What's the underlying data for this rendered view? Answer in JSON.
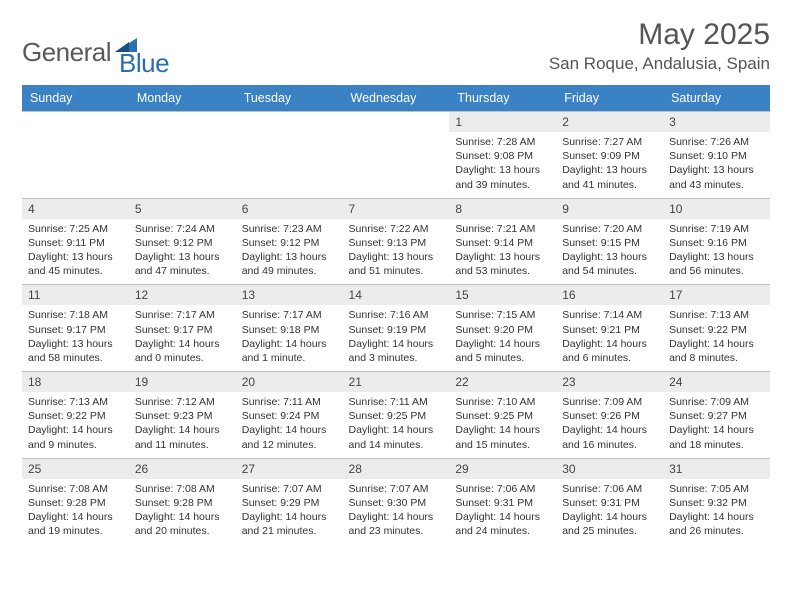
{
  "brand": {
    "name1": "General",
    "name2": "Blue"
  },
  "title": "May 2025",
  "location": "San Roque, Andalusia, Spain",
  "colors": {
    "header_bg": "#3b82c4",
    "header_fg": "#ffffff",
    "daynum_bg": "#ececec",
    "border": "#bfbfbf",
    "text": "#333333",
    "title": "#555555",
    "brand_gray": "#5a5a5a",
    "brand_blue": "#2b6fb0"
  },
  "weekdays": [
    "Sunday",
    "Monday",
    "Tuesday",
    "Wednesday",
    "Thursday",
    "Friday",
    "Saturday"
  ],
  "weeks": [
    [
      null,
      null,
      null,
      null,
      {
        "n": "1",
        "sr": "Sunrise: 7:28 AM",
        "ss": "Sunset: 9:08 PM",
        "dl": "Daylight: 13 hours and 39 minutes."
      },
      {
        "n": "2",
        "sr": "Sunrise: 7:27 AM",
        "ss": "Sunset: 9:09 PM",
        "dl": "Daylight: 13 hours and 41 minutes."
      },
      {
        "n": "3",
        "sr": "Sunrise: 7:26 AM",
        "ss": "Sunset: 9:10 PM",
        "dl": "Daylight: 13 hours and 43 minutes."
      }
    ],
    [
      {
        "n": "4",
        "sr": "Sunrise: 7:25 AM",
        "ss": "Sunset: 9:11 PM",
        "dl": "Daylight: 13 hours and 45 minutes."
      },
      {
        "n": "5",
        "sr": "Sunrise: 7:24 AM",
        "ss": "Sunset: 9:12 PM",
        "dl": "Daylight: 13 hours and 47 minutes."
      },
      {
        "n": "6",
        "sr": "Sunrise: 7:23 AM",
        "ss": "Sunset: 9:12 PM",
        "dl": "Daylight: 13 hours and 49 minutes."
      },
      {
        "n": "7",
        "sr": "Sunrise: 7:22 AM",
        "ss": "Sunset: 9:13 PM",
        "dl": "Daylight: 13 hours and 51 minutes."
      },
      {
        "n": "8",
        "sr": "Sunrise: 7:21 AM",
        "ss": "Sunset: 9:14 PM",
        "dl": "Daylight: 13 hours and 53 minutes."
      },
      {
        "n": "9",
        "sr": "Sunrise: 7:20 AM",
        "ss": "Sunset: 9:15 PM",
        "dl": "Daylight: 13 hours and 54 minutes."
      },
      {
        "n": "10",
        "sr": "Sunrise: 7:19 AM",
        "ss": "Sunset: 9:16 PM",
        "dl": "Daylight: 13 hours and 56 minutes."
      }
    ],
    [
      {
        "n": "11",
        "sr": "Sunrise: 7:18 AM",
        "ss": "Sunset: 9:17 PM",
        "dl": "Daylight: 13 hours and 58 minutes."
      },
      {
        "n": "12",
        "sr": "Sunrise: 7:17 AM",
        "ss": "Sunset: 9:17 PM",
        "dl": "Daylight: 14 hours and 0 minutes."
      },
      {
        "n": "13",
        "sr": "Sunrise: 7:17 AM",
        "ss": "Sunset: 9:18 PM",
        "dl": "Daylight: 14 hours and 1 minute."
      },
      {
        "n": "14",
        "sr": "Sunrise: 7:16 AM",
        "ss": "Sunset: 9:19 PM",
        "dl": "Daylight: 14 hours and 3 minutes."
      },
      {
        "n": "15",
        "sr": "Sunrise: 7:15 AM",
        "ss": "Sunset: 9:20 PM",
        "dl": "Daylight: 14 hours and 5 minutes."
      },
      {
        "n": "16",
        "sr": "Sunrise: 7:14 AM",
        "ss": "Sunset: 9:21 PM",
        "dl": "Daylight: 14 hours and 6 minutes."
      },
      {
        "n": "17",
        "sr": "Sunrise: 7:13 AM",
        "ss": "Sunset: 9:22 PM",
        "dl": "Daylight: 14 hours and 8 minutes."
      }
    ],
    [
      {
        "n": "18",
        "sr": "Sunrise: 7:13 AM",
        "ss": "Sunset: 9:22 PM",
        "dl": "Daylight: 14 hours and 9 minutes."
      },
      {
        "n": "19",
        "sr": "Sunrise: 7:12 AM",
        "ss": "Sunset: 9:23 PM",
        "dl": "Daylight: 14 hours and 11 minutes."
      },
      {
        "n": "20",
        "sr": "Sunrise: 7:11 AM",
        "ss": "Sunset: 9:24 PM",
        "dl": "Daylight: 14 hours and 12 minutes."
      },
      {
        "n": "21",
        "sr": "Sunrise: 7:11 AM",
        "ss": "Sunset: 9:25 PM",
        "dl": "Daylight: 14 hours and 14 minutes."
      },
      {
        "n": "22",
        "sr": "Sunrise: 7:10 AM",
        "ss": "Sunset: 9:25 PM",
        "dl": "Daylight: 14 hours and 15 minutes."
      },
      {
        "n": "23",
        "sr": "Sunrise: 7:09 AM",
        "ss": "Sunset: 9:26 PM",
        "dl": "Daylight: 14 hours and 16 minutes."
      },
      {
        "n": "24",
        "sr": "Sunrise: 7:09 AM",
        "ss": "Sunset: 9:27 PM",
        "dl": "Daylight: 14 hours and 18 minutes."
      }
    ],
    [
      {
        "n": "25",
        "sr": "Sunrise: 7:08 AM",
        "ss": "Sunset: 9:28 PM",
        "dl": "Daylight: 14 hours and 19 minutes."
      },
      {
        "n": "26",
        "sr": "Sunrise: 7:08 AM",
        "ss": "Sunset: 9:28 PM",
        "dl": "Daylight: 14 hours and 20 minutes."
      },
      {
        "n": "27",
        "sr": "Sunrise: 7:07 AM",
        "ss": "Sunset: 9:29 PM",
        "dl": "Daylight: 14 hours and 21 minutes."
      },
      {
        "n": "28",
        "sr": "Sunrise: 7:07 AM",
        "ss": "Sunset: 9:30 PM",
        "dl": "Daylight: 14 hours and 23 minutes."
      },
      {
        "n": "29",
        "sr": "Sunrise: 7:06 AM",
        "ss": "Sunset: 9:31 PM",
        "dl": "Daylight: 14 hours and 24 minutes."
      },
      {
        "n": "30",
        "sr": "Sunrise: 7:06 AM",
        "ss": "Sunset: 9:31 PM",
        "dl": "Daylight: 14 hours and 25 minutes."
      },
      {
        "n": "31",
        "sr": "Sunrise: 7:05 AM",
        "ss": "Sunset: 9:32 PM",
        "dl": "Daylight: 14 hours and 26 minutes."
      }
    ]
  ]
}
